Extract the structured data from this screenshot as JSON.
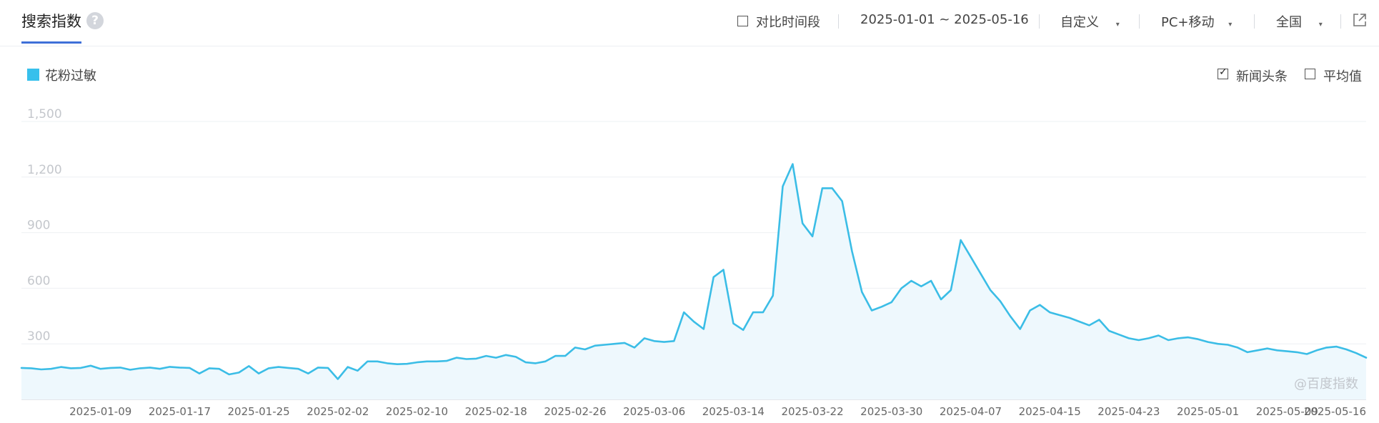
{
  "header": {
    "title": "搜索指数",
    "help_icon": "?",
    "compare_label": "对比时间段",
    "date_range": "2025-01-01 ~ 2025-05-16",
    "custom_label": "自定义",
    "device_label": "PC+移动",
    "region_label": "全国",
    "caret": "▾",
    "icons": [
      "question-icon",
      "external-link-icon"
    ]
  },
  "options": {
    "news_label": "新闻头条",
    "news_checked": true,
    "average_label": "平均值",
    "average_checked": false
  },
  "watermark": "@百度指数",
  "colors": {
    "line": "#3bbde6",
    "fill": "#eef8fd",
    "legend": "#37c0ec",
    "accent": "#3e6fd8"
  },
  "chart_data": {
    "type": "area",
    "series": [
      {
        "name": "花粉过敏",
        "values": [
          170,
          168,
          162,
          165,
          175,
          168,
          170,
          182,
          165,
          170,
          172,
          160,
          168,
          172,
          165,
          176,
          172,
          170,
          140,
          168,
          165,
          135,
          145,
          180,
          140,
          168,
          175,
          170,
          165,
          140,
          172,
          170,
          110,
          175,
          155,
          205,
          205,
          195,
          190,
          192,
          200,
          205,
          205,
          208,
          225,
          218,
          220,
          235,
          225,
          240,
          230,
          200,
          195,
          205,
          235,
          235,
          280,
          270,
          290,
          295,
          300,
          305,
          280,
          330,
          315,
          310,
          315,
          470,
          420,
          380,
          660,
          700,
          410,
          375,
          470,
          470,
          560,
          1150,
          1270,
          950,
          880,
          1140,
          1140,
          1070,
          800,
          580,
          480,
          500,
          525,
          600,
          640,
          610,
          640,
          540,
          590,
          860,
          770,
          680,
          590,
          530,
          450,
          380,
          480,
          510,
          470,
          455,
          440,
          420,
          400,
          430,
          370,
          350,
          330,
          320,
          330,
          345,
          320,
          330,
          335,
          325,
          310,
          300,
          295,
          280,
          255,
          265,
          275,
          265,
          260,
          255,
          245,
          265,
          280,
          285,
          270,
          250,
          225
        ]
      }
    ],
    "x_tick_labels": [
      "2025-01-09",
      "2025-01-17",
      "2025-01-25",
      "2025-02-02",
      "2025-02-10",
      "2025-02-18",
      "2025-02-26",
      "2025-03-06",
      "2025-03-14",
      "2025-03-22",
      "2025-03-30",
      "2025-04-07",
      "2025-04-15",
      "2025-04-23",
      "2025-05-01",
      "2025-05-09",
      "2025-05-16"
    ],
    "y_ticks": [
      300,
      600,
      900,
      1200,
      1500
    ],
    "y_tick_labels": [
      "300",
      "600",
      "900",
      "1,200",
      "1,500"
    ],
    "ylim": [
      0,
      1500
    ],
    "grid": true,
    "legend_position": "top-left"
  }
}
